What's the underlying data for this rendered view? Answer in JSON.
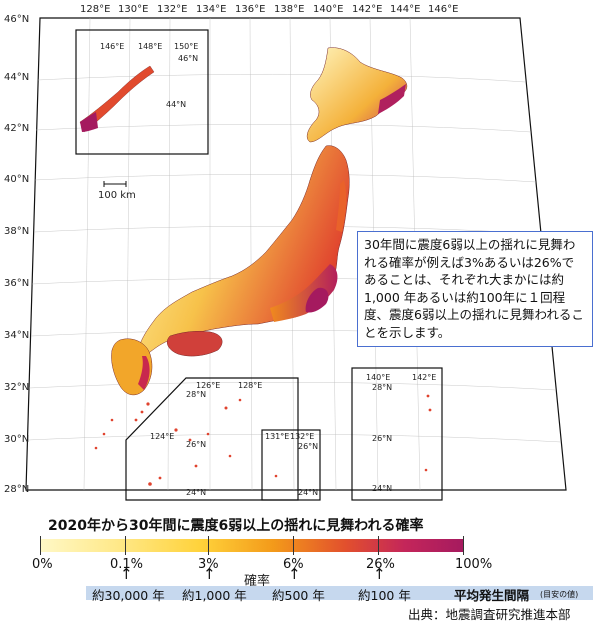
{
  "map": {
    "top_lon_labels": [
      "128°E",
      "130°E",
      "132°E",
      "134°E",
      "136°E",
      "138°E",
      "140°E",
      "142°E",
      "144°E",
      "146°E"
    ],
    "left_lat_labels": [
      "46°N",
      "44°N",
      "42°N",
      "40°N",
      "38°N",
      "36°N",
      "34°N",
      "32°N",
      "30°N",
      "28°N"
    ],
    "scale_label": "100 km",
    "inset_hokkaido_east": {
      "lon_labels": [
        "146°E",
        "148°E",
        "150°E"
      ],
      "lat_labels": [
        "46°N",
        "44°N"
      ]
    },
    "inset_daito": {
      "lon_labels": [
        "126°E",
        "128°E",
        "124°E"
      ],
      "lat_labels": [
        "28°N",
        "26°N",
        "24°N"
      ]
    },
    "inset_okinotori": {
      "lon_labels": [
        "131°E",
        "132°E"
      ],
      "lat_labels": [
        "26°N",
        "24°N"
      ]
    },
    "inset_ogasawara": {
      "lon_labels": [
        "140°E",
        "142°E"
      ],
      "lat_labels": [
        "28°N",
        "26°N",
        "24°N"
      ]
    }
  },
  "note": {
    "text": "30年間に震度6弱以上の揺れに見舞われる確率が例えば3%あるいは26%であることは、それぞれ大まかには約1,000 年あるいは約100年に１回程度、震度6弱以上の揺れに見舞われることを示します。"
  },
  "legend": {
    "title": "2020年から30年間に震度6弱以上の揺れに見舞われる確率",
    "percent_labels": [
      "0%",
      "0.1%",
      "3%",
      "6%",
      "26%",
      "100%"
    ],
    "axis_label": "確率",
    "interval_labels": [
      "約30,000 年",
      "約1,000 年",
      "約500 年",
      "約100 年"
    ],
    "interval_title": "平均発生間隔",
    "interval_note": "(目安の値)"
  },
  "source": "出典：地震調査研究推進本部",
  "colors": {
    "low": "#fff4b0",
    "mid": "#f7b62a",
    "high": "#e2502d",
    "very_high": "#a51a5f",
    "frame": "#111111",
    "note_border": "#4a6fd0",
    "interval_band": "#c6d8ee"
  }
}
